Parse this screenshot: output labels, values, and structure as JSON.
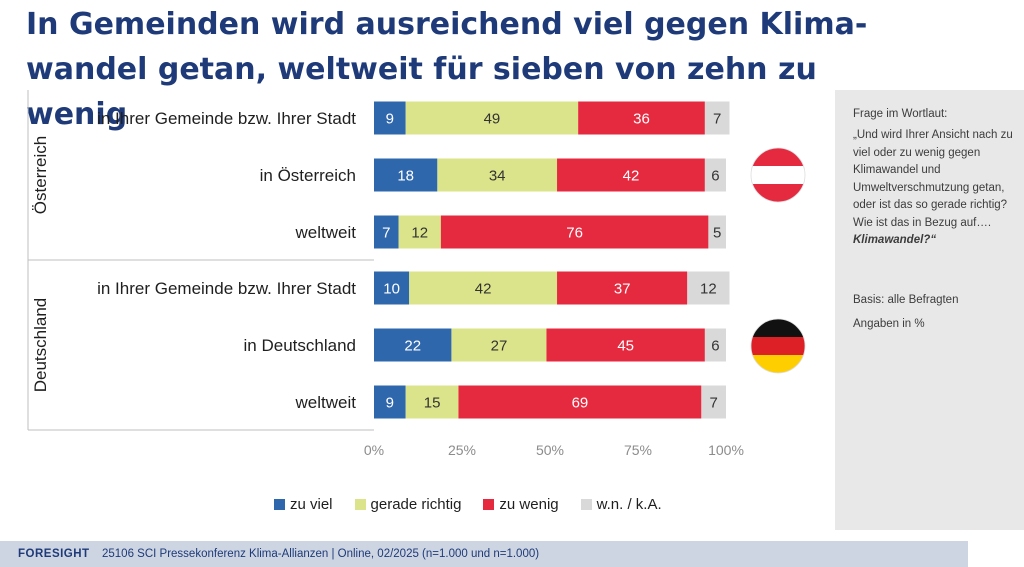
{
  "title": "In Gemeinden wird ausreichend viel gegen Klima-wandel getan, weltweit für sieben von zehn zu wenig",
  "chart_data": {
    "type": "bar",
    "orientation": "horizontal",
    "stacked": true,
    "groups": [
      "Österreich",
      "Deutschland"
    ],
    "categories": [
      "in Ihrer Gemeinde bzw. Ihrer Stadt",
      "in Österreich",
      "weltweit",
      "in Ihrer Gemeinde bzw. Ihrer Stadt",
      "in Deutschland",
      "weltweit"
    ],
    "category_groups": [
      0,
      0,
      0,
      1,
      1,
      1
    ],
    "series": [
      {
        "name": "zu viel",
        "color": "#2f67ad",
        "values": [
          9,
          18,
          7,
          10,
          22,
          9
        ]
      },
      {
        "name": "gerade richtig",
        "color": "#dbe48b",
        "values": [
          49,
          34,
          12,
          42,
          27,
          15
        ]
      },
      {
        "name": "zu wenig",
        "color": "#e5293f",
        "values": [
          36,
          42,
          76,
          37,
          45,
          69
        ]
      },
      {
        "name": "w.n. / k.A.",
        "color": "#d9d9d9",
        "values": [
          7,
          6,
          5,
          12,
          6,
          7
        ]
      }
    ],
    "x_ticks": [
      "0%",
      "25%",
      "50%",
      "75%",
      "100%"
    ],
    "xlim": [
      0,
      100
    ],
    "legend_position": "bottom",
    "grid": false
  },
  "flags": [
    {
      "country": "Österreich",
      "flag_icon": "austria-flag-icon"
    },
    {
      "country": "Deutschland",
      "flag_icon": "germany-flag-icon"
    }
  ],
  "side_panel": {
    "heading": "Frage im Wortlaut:",
    "question": "„Und wird Ihrer Ansicht nach zu viel oder zu wenig gegen Klimawandel und Umweltverschmutzung getan, oder ist das so gerade richtig? Wie ist das in Bezug auf….",
    "question_emphasis": "Klimawandel?“",
    "base": "Basis: alle Befragten",
    "unit": "Angaben in %"
  },
  "footer": {
    "brand": "FORESIGHT",
    "text": "25106 SCI Pressekonferenz Klima-Allianzen | Online, 02/2025 (n=1.000 und n=1.000)"
  }
}
